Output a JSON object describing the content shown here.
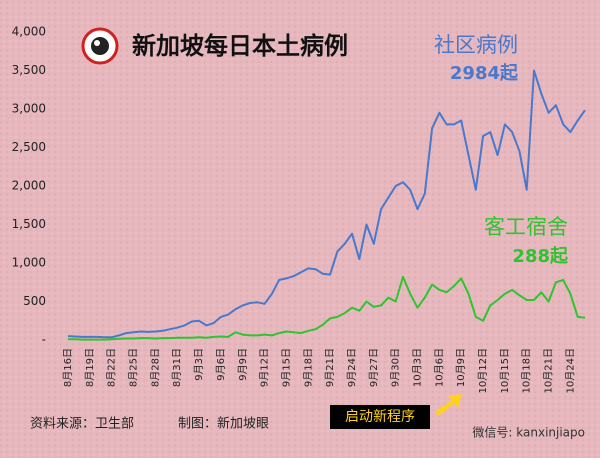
{
  "chart_data": {
    "type": "line",
    "title": "新加坡每日本土病例",
    "categories": [
      "8月16日",
      null,
      null,
      "8月19日",
      null,
      null,
      "8月22日",
      null,
      null,
      "8月25日",
      null,
      null,
      "8月28日",
      null,
      null,
      "8月31日",
      null,
      null,
      "9月3日",
      null,
      null,
      "9月6日",
      null,
      null,
      "9月9日",
      null,
      null,
      "9月12日",
      null,
      null,
      "9月15日",
      null,
      null,
      "9月18日",
      null,
      null,
      "9月21日",
      null,
      null,
      "9月24日",
      null,
      null,
      "9月27日",
      null,
      null,
      "9月30日",
      null,
      null,
      "10月3日",
      null,
      null,
      "10月6日",
      null,
      null,
      "10月9日",
      null,
      null,
      "10月12日",
      null,
      null,
      "10月15日",
      null,
      null,
      "10月18日",
      null,
      null,
      "10月21日",
      null,
      null,
      "10月24日",
      null,
      null
    ],
    "series": [
      {
        "name": "社区病例",
        "color": "#4a78cc",
        "label": "2984起",
        "values": [
          50,
          45,
          40,
          40,
          40,
          35,
          35,
          60,
          90,
          100,
          110,
          105,
          110,
          120,
          140,
          160,
          190,
          240,
          250,
          190,
          220,
          300,
          330,
          400,
          450,
          480,
          490,
          470,
          600,
          780,
          800,
          830,
          880,
          930,
          920,
          860,
          850,
          1150,
          1250,
          1380,
          1050,
          1500,
          1250,
          1700,
          1850,
          2000,
          2050,
          1950,
          1700,
          1900,
          2750,
          2950,
          2800,
          2800,
          2850,
          2400,
          1950,
          2650,
          2700,
          2400,
          2800,
          2700,
          2450,
          1950,
          3500,
          3200,
          2950,
          3050,
          2800,
          2700,
          2850,
          2984
        ]
      },
      {
        "name": "客工宿舍",
        "color": "#2fc42f",
        "label": "288起",
        "values": [
          10,
          10,
          5,
          5,
          5,
          5,
          10,
          15,
          20,
          20,
          25,
          25,
          20,
          25,
          25,
          30,
          30,
          30,
          35,
          30,
          40,
          45,
          40,
          100,
          70,
          60,
          60,
          70,
          60,
          90,
          110,
          100,
          90,
          120,
          140,
          200,
          280,
          300,
          350,
          420,
          380,
          500,
          430,
          450,
          550,
          500,
          820,
          600,
          420,
          550,
          720,
          650,
          620,
          700,
          800,
          600,
          300,
          250,
          450,
          520,
          600,
          650,
          580,
          520,
          520,
          620,
          500,
          750,
          780,
          600,
          300,
          288
        ]
      }
    ],
    "ylim": [
      0,
      4000
    ],
    "yticks": [
      {
        "value": 0,
        "label": "-"
      },
      500,
      {
        "value": 1000,
        "label": "1,000"
      },
      {
        "value": 1500,
        "label": "1,500"
      },
      {
        "value": 2000,
        "label": "2,000"
      },
      {
        "value": 2500,
        "label": "2,500"
      },
      {
        "value": 3000,
        "label": "3,000"
      },
      {
        "value": 3500,
        "label": "3,500"
      },
      {
        "value": 4000,
        "label": "4,000"
      }
    ],
    "source": "资料来源：卫生部",
    "credit": "制图：新加坡眼",
    "callout": "启动新程序",
    "watermark": "微信号: kanxinjiapo"
  }
}
